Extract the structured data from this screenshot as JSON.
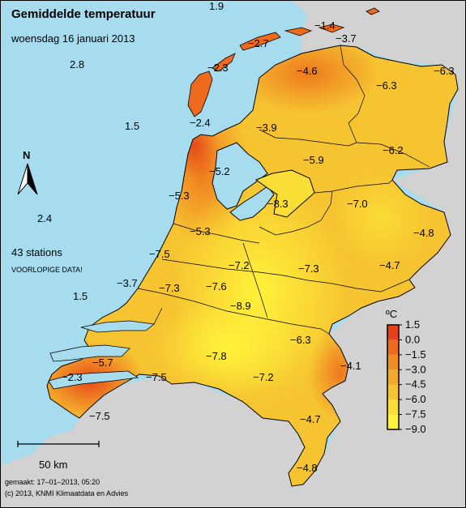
{
  "title": "Gemiddelde temperatuur",
  "subtitle": "woensdag 16 januari 2013",
  "station_count": "43 stations",
  "disclaimer": "VOORLOPIGE DATA!",
  "north_label": "N",
  "scale_label": "50 km",
  "footer_made": "gemaakt: 17–01–2013, 05:20",
  "footer_copyright": "(c) 2013, KNMI Klimaatdata en Advies",
  "legend": {
    "unit": "ºC",
    "ticks": [
      "1.5",
      "0.0",
      "−1.5",
      "−3.0",
      "−4.5",
      "−6.0",
      "−7.5",
      "−9.0"
    ],
    "colors": [
      "#e8401a",
      "#ee6a1c",
      "#f08c22",
      "#f3a82a",
      "#f6c431",
      "#f9de35",
      "#fff23a"
    ]
  },
  "sea_values": [
    "1.9",
    "2.8",
    "1.5",
    "2.4",
    "1.5"
  ],
  "station_values": [
    "−1.4",
    "−3.7",
    "−2.7",
    "−2.3",
    "−4.6",
    "−6.3",
    "−6.3",
    "−2.4",
    "−3.9",
    "−6.2",
    "−5.9",
    "−5.2",
    "−5.3",
    "−8.3",
    "−7.0",
    "−5.3",
    "−4.8",
    "−7.5",
    "−7.2",
    "−7.3",
    "−4.7",
    "−3.7",
    "−7.3",
    "−7.6",
    "−8.9",
    "−6.3",
    "−7.8",
    "−4.1",
    "−5.7",
    "−7.5",
    "−2.3",
    "−7.2",
    "−7.5",
    "−4.7",
    "−4.8"
  ]
}
